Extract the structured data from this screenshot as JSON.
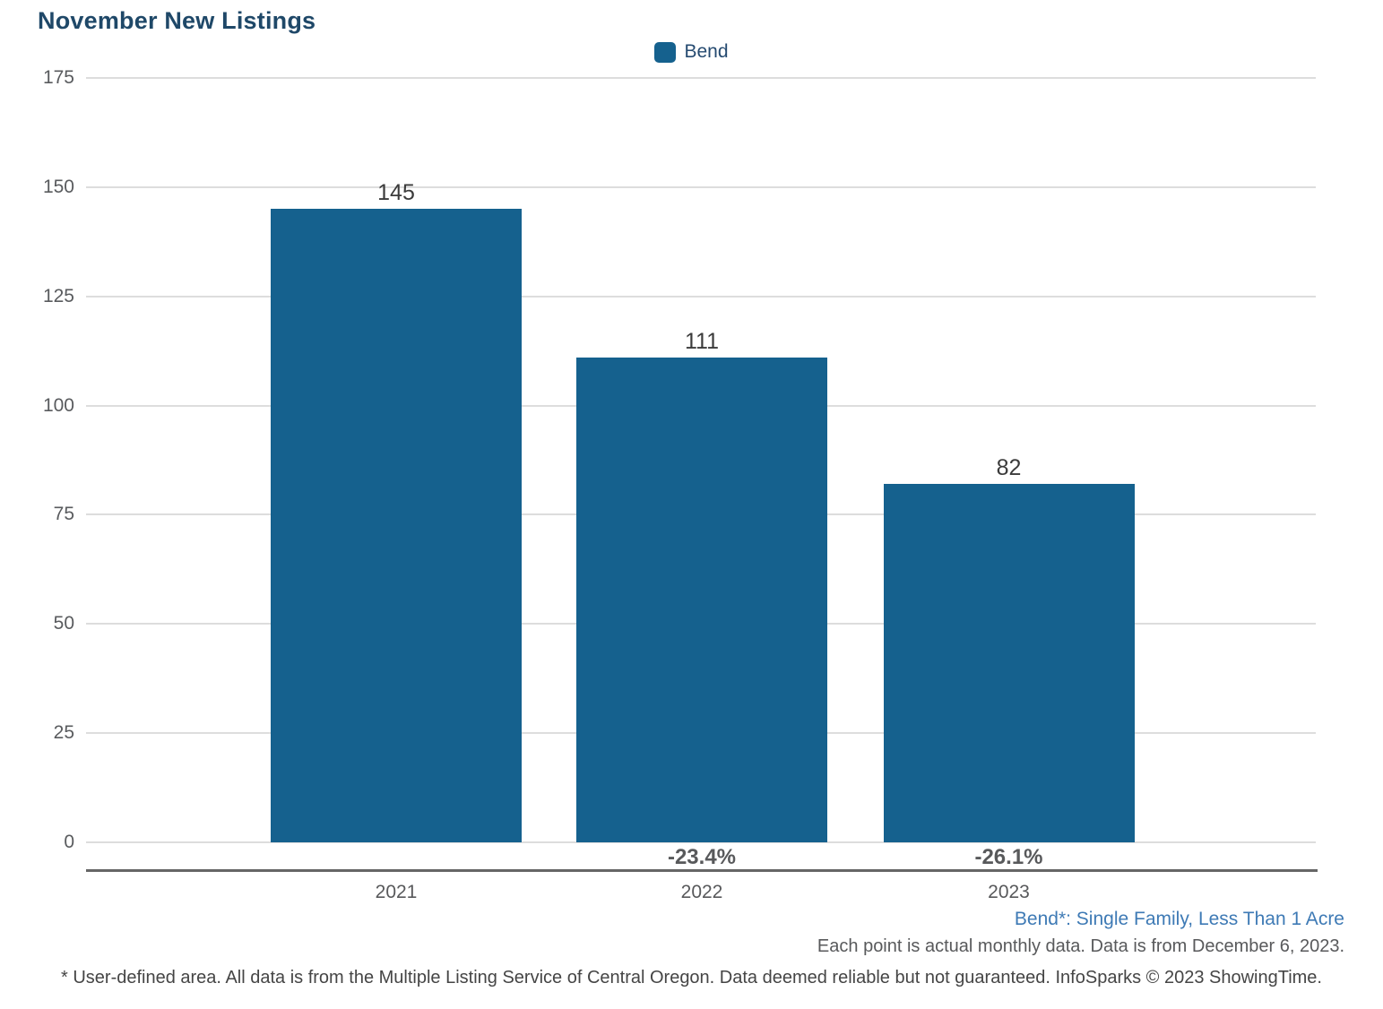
{
  "title": "November New Listings",
  "legend": {
    "label": "Bend",
    "swatch_color": "#15618E"
  },
  "chart_data": {
    "type": "bar",
    "title": "November New Listings",
    "categories": [
      "2021",
      "2022",
      "2023"
    ],
    "series": [
      {
        "name": "Bend",
        "values": [
          145,
          111,
          82
        ],
        "color": "#15618E"
      }
    ],
    "value_labels": [
      "145",
      "111",
      "82"
    ],
    "pct_change_labels": [
      "",
      "-23.4%",
      "-26.1%"
    ],
    "xlabel": "",
    "ylabel": "",
    "ylim": [
      0,
      175
    ],
    "ytick_step": 25,
    "yticks": [
      0,
      25,
      50,
      75,
      100,
      125,
      150,
      175
    ],
    "grid": "horizontal",
    "legend_position": "top-center"
  },
  "footnotes": {
    "series_definition": "Bend*: Single Family, Less Than 1 Acre",
    "data_note": "Each point is actual monthly data. Data is from December 6, 2023.",
    "disclaimer": "* User-defined area. All data is from the Multiple Listing Service of Central Oregon. Data deemed reliable but not guaranteed. InfoSparks © 2023 ShowingTime."
  }
}
